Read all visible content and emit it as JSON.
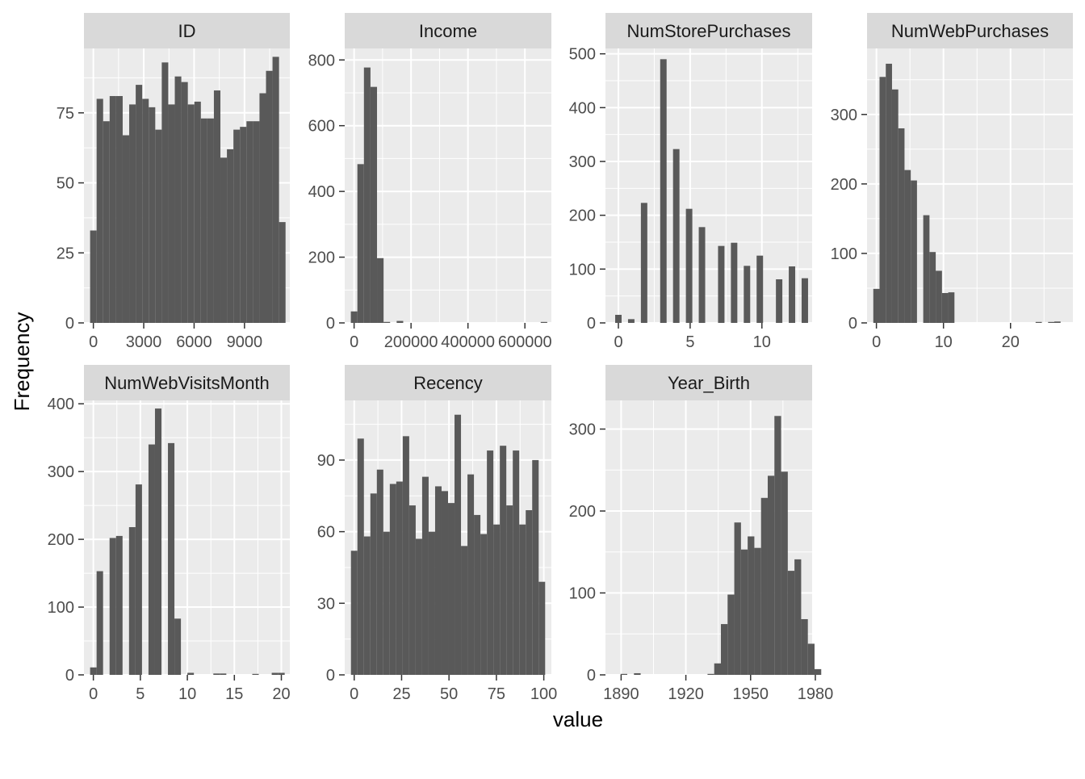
{
  "chart_data": {
    "type": "bar",
    "xlabel": "value",
    "ylabel": "Frequency",
    "colors": {
      "bar": "#595959",
      "panel_bg": "#ebebeb",
      "strip_bg": "#d9d9d9",
      "grid": "#ffffff"
    },
    "facets": [
      {
        "name": "ID",
        "xlim": [
          -560,
          11700
        ],
        "ylim": [
          0,
          98
        ],
        "xticks": [
          0,
          3000,
          6000,
          9000
        ],
        "xtick_labels": [
          "0",
          "3000",
          "6000",
          "9000"
        ],
        "yticks": [
          0,
          25,
          50,
          75
        ],
        "ytick_labels": [
          "0",
          "25",
          "50",
          "75"
        ],
        "binwidth": 388,
        "bin_start": -194,
        "counts": [
          33,
          80,
          72,
          81,
          81,
          67,
          78,
          85,
          80,
          77,
          69,
          93,
          78,
          88,
          86,
          78,
          79,
          73,
          73,
          83,
          59,
          62,
          69,
          70,
          72,
          72,
          82,
          90,
          95,
          36
        ]
      },
      {
        "name": "Income",
        "xlim": [
          -33000,
          693000
        ],
        "ylim": [
          0,
          835
        ],
        "xticks": [
          0,
          200000,
          400000,
          600000
        ],
        "xtick_labels": [
          "0",
          "200000",
          "400000",
          "600000"
        ],
        "yticks": [
          0,
          200,
          400,
          600,
          800
        ],
        "ytick_labels": [
          "0",
          "200",
          "400",
          "600",
          "800"
        ],
        "binwidth": 23000,
        "bin_start": -11500,
        "counts": [
          35,
          483,
          777,
          718,
          197,
          3,
          0,
          6,
          0,
          0,
          0,
          0,
          0,
          0,
          0,
          0,
          0,
          0,
          0,
          0,
          0,
          0,
          0,
          0,
          0,
          0,
          0,
          0,
          0,
          1
        ]
      },
      {
        "name": "NumStorePurchases",
        "xlim": [
          -0.9,
          13.5
        ],
        "ylim": [
          0,
          510
        ],
        "xticks": [
          0,
          5,
          10
        ],
        "xtick_labels": [
          "0",
          "5",
          "10"
        ],
        "yticks": [
          0,
          100,
          200,
          300,
          400,
          500
        ],
        "ytick_labels": [
          "0",
          "100",
          "200",
          "300",
          "400",
          "500"
        ],
        "binwidth": 0.448,
        "bin_start": -0.224,
        "counts": [
          15,
          0,
          7,
          0,
          223,
          0,
          0,
          490,
          0,
          323,
          0,
          212,
          0,
          178,
          0,
          0,
          143,
          0,
          149,
          0,
          106,
          0,
          125,
          0,
          0,
          81,
          0,
          105,
          0,
          83
        ]
      },
      {
        "name": "NumWebPurchases",
        "xlim": [
          -1.4,
          29.3
        ],
        "ylim": [
          0,
          395
        ],
        "xticks": [
          0,
          10,
          20
        ],
        "xtick_labels": [
          "0",
          "10",
          "20"
        ],
        "yticks": [
          0,
          100,
          200,
          300
        ],
        "ytick_labels": [
          "0",
          "100",
          "200",
          "300"
        ],
        "binwidth": 0.931,
        "bin_start": -0.466,
        "counts": [
          49,
          354,
          373,
          336,
          280,
          220,
          205,
          0,
          155,
          102,
          75,
          43,
          44,
          0,
          0,
          0,
          0,
          0,
          0,
          0,
          0,
          0,
          0,
          0,
          0,
          0,
          1,
          0,
          1,
          2
        ]
      },
      {
        "name": "NumWebVisitsMonth",
        "xlim": [
          -1.0,
          20.9
        ],
        "ylim": [
          0,
          405
        ],
        "xticks": [
          0,
          5,
          10,
          15,
          20
        ],
        "xtick_labels": [
          "0",
          "5",
          "10",
          "15",
          "20"
        ],
        "yticks": [
          0,
          100,
          200,
          300,
          400
        ],
        "ytick_labels": [
          "0",
          "100",
          "200",
          "300",
          "400"
        ],
        "binwidth": 0.69,
        "bin_start": -0.345,
        "counts": [
          11,
          153,
          0,
          202,
          205,
          0,
          218,
          281,
          0,
          340,
          393,
          0,
          342,
          83,
          0,
          3,
          0,
          0,
          0,
          2,
          2,
          0,
          0,
          0,
          0,
          1,
          0,
          0,
          3,
          3
        ]
      },
      {
        "name": "Recency",
        "xlim": [
          -5.0,
          104.0
        ],
        "ylim": [
          0,
          115
        ],
        "xticks": [
          0,
          25,
          50,
          75,
          100
        ],
        "xtick_labels": [
          "0",
          "25",
          "50",
          "75",
          "100"
        ],
        "yticks": [
          0,
          30,
          60,
          90
        ],
        "ytick_labels": [
          "0",
          "30",
          "60",
          "90"
        ],
        "binwidth": 3.414,
        "bin_start": -1.707,
        "counts": [
          52,
          99,
          58,
          76,
          86,
          60,
          80,
          81,
          100,
          71,
          57,
          83,
          60,
          79,
          77,
          72,
          109,
          54,
          84,
          67,
          59,
          94,
          63,
          96,
          71,
          94,
          63,
          69,
          90,
          39
        ]
      },
      {
        "name": "Year_Birth",
        "xlim": [
          -0.76,
          30.14
        ],
        "ylim": [
          0,
          335
        ],
        "xticks": [
          1.58,
          11.26,
          20.94,
          30.62
        ],
        "xtick_labels": [
          "1890",
          "1920",
          "1950",
          "1980"
        ],
        "yticks": [
          0,
          100,
          200,
          300
        ],
        "ytick_labels": [
          "0",
          "100",
          "200",
          "300"
        ],
        "binwidth": 1,
        "bin_start": 0.5,
        "counts": [
          0,
          1,
          0,
          2,
          0,
          0,
          0,
          0,
          0,
          0,
          0,
          0,
          0,
          0,
          1,
          14,
          62,
          98,
          186,
          153,
          169,
          155,
          216,
          243,
          316,
          248,
          127,
          141,
          68,
          38,
          7
        ]
      }
    ]
  }
}
